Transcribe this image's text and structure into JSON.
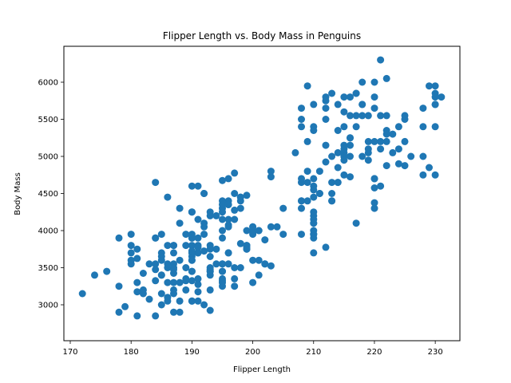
{
  "chart_data": {
    "type": "scatter",
    "title": "Flipper Length vs. Body Mass in Penguins",
    "xlabel": "Flipper Length",
    "ylabel": "Body Mass",
    "xlim": [
      168.95,
      234.05
    ],
    "ylim": [
      2516,
      6484
    ],
    "xticks": [
      170,
      180,
      190,
      200,
      210,
      220,
      230
    ],
    "yticks": [
      3000,
      3500,
      4000,
      4500,
      5000,
      5500,
      6000
    ],
    "grid": false,
    "legend": null,
    "marker_color": "#1f77b4",
    "points": [
      [
        181,
        3750
      ],
      [
        186,
        3800
      ],
      [
        195,
        3250
      ],
      [
        193,
        3450
      ],
      [
        190,
        3650
      ],
      [
        181,
        3625
      ],
      [
        195,
        4675
      ],
      [
        193,
        3475
      ],
      [
        190,
        4250
      ],
      [
        186,
        3300
      ],
      [
        180,
        3700
      ],
      [
        182,
        3200
      ],
      [
        191,
        3800
      ],
      [
        198,
        4400
      ],
      [
        185,
        3700
      ],
      [
        195,
        3450
      ],
      [
        197,
        4500
      ],
      [
        184,
        3325
      ],
      [
        194,
        4200
      ],
      [
        174,
        3400
      ],
      [
        180,
        3600
      ],
      [
        189,
        3800
      ],
      [
        185,
        3950
      ],
      [
        180,
        3800
      ],
      [
        187,
        3800
      ],
      [
        183,
        3550
      ],
      [
        187,
        3200
      ],
      [
        172,
        3150
      ],
      [
        180,
        3950
      ],
      [
        178,
        3250
      ],
      [
        178,
        3900
      ],
      [
        188,
        3300
      ],
      [
        184,
        3900
      ],
      [
        195,
        3325
      ],
      [
        196,
        4150
      ],
      [
        190,
        3950
      ],
      [
        180,
        3550
      ],
      [
        181,
        3300
      ],
      [
        184,
        4650
      ],
      [
        182,
        3150
      ],
      [
        195,
        3900
      ],
      [
        186,
        3100
      ],
      [
        196,
        4400
      ],
      [
        185,
        3000
      ],
      [
        190,
        4600
      ],
      [
        182,
        3425
      ],
      [
        179,
        2975
      ],
      [
        190,
        3450
      ],
      [
        191,
        4150
      ],
      [
        186,
        3500
      ],
      [
        188,
        4300
      ],
      [
        190,
        3450
      ],
      [
        200,
        4050
      ],
      [
        187,
        2900
      ],
      [
        191,
        3700
      ],
      [
        186,
        3550
      ],
      [
        193,
        3800
      ],
      [
        181,
        2850
      ],
      [
        194,
        3750
      ],
      [
        185,
        3150
      ],
      [
        195,
        4400
      ],
      [
        185,
        3600
      ],
      [
        192,
        4050
      ],
      [
        184,
        2850
      ],
      [
        192,
        3950
      ],
      [
        195,
        3350
      ],
      [
        188,
        4100
      ],
      [
        190,
        3050
      ],
      [
        198,
        4450
      ],
      [
        190,
        3600
      ],
      [
        190,
        3900
      ],
      [
        196,
        3550
      ],
      [
        197,
        4150
      ],
      [
        190,
        3700
      ],
      [
        195,
        4250
      ],
      [
        191,
        3700
      ],
      [
        184,
        3900
      ],
      [
        187,
        3550
      ],
      [
        195,
        4000
      ],
      [
        189,
        3200
      ],
      [
        196,
        4700
      ],
      [
        187,
        3800
      ],
      [
        193,
        4200
      ],
      [
        191,
        3350
      ],
      [
        194,
        3550
      ],
      [
        190,
        3800
      ],
      [
        189,
        3500
      ],
      [
        189,
        3950
      ],
      [
        190,
        3600
      ],
      [
        202,
        3550
      ],
      [
        205,
        4300
      ],
      [
        185,
        3400
      ],
      [
        186,
        4450
      ],
      [
        187,
        3300
      ],
      [
        208,
        4300
      ],
      [
        190,
        3700
      ],
      [
        196,
        4350
      ],
      [
        178,
        2900
      ],
      [
        192,
        4100
      ],
      [
        192,
        3725
      ],
      [
        203,
        4725
      ],
      [
        183,
        3075
      ],
      [
        190,
        4250
      ],
      [
        193,
        2925
      ],
      [
        184,
        3550
      ],
      [
        199,
        3750
      ],
      [
        190,
        3900
      ],
      [
        181,
        3175
      ],
      [
        197,
        4775
      ],
      [
        198,
        3825
      ],
      [
        191,
        4600
      ],
      [
        193,
        3200
      ],
      [
        197,
        4275
      ],
      [
        191,
        3900
      ],
      [
        196,
        4075
      ],
      [
        188,
        2900
      ],
      [
        199,
        3775
      ],
      [
        189,
        3350
      ],
      [
        189,
        3325
      ],
      [
        187,
        3150
      ],
      [
        198,
        3500
      ],
      [
        176,
        3450
      ],
      [
        202,
        3875
      ],
      [
        186,
        3050
      ],
      [
        199,
        4000
      ],
      [
        191,
        3275
      ],
      [
        195,
        4300
      ],
      [
        191,
        3050
      ],
      [
        210,
        4000
      ],
      [
        190,
        3325
      ],
      [
        197,
        3500
      ],
      [
        193,
        3500
      ],
      [
        199,
        4475
      ],
      [
        187,
        3425
      ],
      [
        190,
        3900
      ],
      [
        191,
        3175
      ],
      [
        200,
        3975
      ],
      [
        185,
        3400
      ],
      [
        193,
        4250
      ],
      [
        193,
        3400
      ],
      [
        187,
        3475
      ],
      [
        188,
        3050
      ],
      [
        190,
        3725
      ],
      [
        192,
        3000
      ],
      [
        185,
        3650
      ],
      [
        190,
        4250
      ],
      [
        184,
        3475
      ],
      [
        195,
        3450
      ],
      [
        193,
        3750
      ],
      [
        187,
        3700
      ],
      [
        201,
        4000
      ],
      [
        211,
        4500
      ],
      [
        230,
        5700
      ],
      [
        210,
        4450
      ],
      [
        218,
        5700
      ],
      [
        215,
        5400
      ],
      [
        210,
        4550
      ],
      [
        211,
        4800
      ],
      [
        219,
        5200
      ],
      [
        209,
        4400
      ],
      [
        215,
        5150
      ],
      [
        214,
        4650
      ],
      [
        216,
        5550
      ],
      [
        214,
        4650
      ],
      [
        213,
        5850
      ],
      [
        210,
        4200
      ],
      [
        217,
        5850
      ],
      [
        210,
        4150
      ],
      [
        221,
        6300
      ],
      [
        209,
        4800
      ],
      [
        222,
        5350
      ],
      [
        218,
        5700
      ],
      [
        215,
        5000
      ],
      [
        213,
        4400
      ],
      [
        215,
        5050
      ],
      [
        215,
        5000
      ],
      [
        215,
        5100
      ],
      [
        210,
        4100
      ],
      [
        220,
        5650
      ],
      [
        222,
        5550
      ],
      [
        209,
        4650
      ],
      [
        207,
        5050
      ],
      [
        230,
        5850
      ],
      [
        220,
        4700
      ],
      [
        220,
        5800
      ],
      [
        213,
        4650
      ],
      [
        219,
        5550
      ],
      [
        208,
        4650
      ],
      [
        208,
        4400
      ],
      [
        208,
        4400
      ],
      [
        225,
        5200
      ],
      [
        210,
        4700
      ],
      [
        216,
        5800
      ],
      [
        222,
        4875
      ],
      [
        217,
        5850
      ],
      [
        225,
        5500
      ],
      [
        213,
        4500
      ],
      [
        215,
        4750
      ],
      [
        210,
        5700
      ],
      [
        220,
        4300
      ],
      [
        210,
        5400
      ],
      [
        225,
        4875
      ],
      [
        217,
        5550
      ],
      [
        220,
        4700
      ],
      [
        208,
        5500
      ],
      [
        220,
        4575
      ],
      [
        208,
        5400
      ],
      [
        224,
        4900
      ],
      [
        208,
        5650
      ],
      [
        221,
        4600
      ],
      [
        214,
        5700
      ],
      [
        231,
        5800
      ],
      [
        219,
        5100
      ],
      [
        230,
        5950
      ],
      [
        214,
        5050
      ],
      [
        229,
        4850
      ],
      [
        220,
        6000
      ],
      [
        223,
        5300
      ],
      [
        216,
        5150
      ],
      [
        221,
        5550
      ],
      [
        221,
        5200
      ],
      [
        217,
        5400
      ],
      [
        216,
        5250
      ],
      [
        230,
        4750
      ],
      [
        209,
        5950
      ],
      [
        220,
        5200
      ],
      [
        215,
        5000
      ],
      [
        223,
        5050
      ],
      [
        212,
        5800
      ],
      [
        221,
        5100
      ],
      [
        212,
        4925
      ],
      [
        224,
        5400
      ],
      [
        212,
        5500
      ],
      [
        228,
        4750
      ],
      [
        218,
        6000
      ],
      [
        218,
        5000
      ],
      [
        212,
        5650
      ],
      [
        230,
        5700
      ],
      [
        218,
        5550
      ],
      [
        228,
        5000
      ],
      [
        212,
        5150
      ],
      [
        224,
        5100
      ],
      [
        214,
        5350
      ],
      [
        226,
        5000
      ],
      [
        216,
        5000
      ],
      [
        222,
        5200
      ],
      [
        203,
        4800
      ],
      [
        225,
        5550
      ],
      [
        219,
        4950
      ],
      [
        228,
        5400
      ],
      [
        215,
        5800
      ],
      [
        228,
        5650
      ],
      [
        216,
        5250
      ],
      [
        215,
        4950
      ],
      [
        210,
        5350
      ],
      [
        219,
        5050
      ],
      [
        208,
        4700
      ],
      [
        209,
        5200
      ],
      [
        216,
        4725
      ],
      [
        229,
        5950
      ],
      [
        213,
        4400
      ],
      [
        230,
        5800
      ],
      [
        217,
        4100
      ],
      [
        230,
        5400
      ],
      [
        222,
        5300
      ],
      [
        214,
        4850
      ],
      [
        215,
        5600
      ],
      [
        222,
        6050
      ],
      [
        212,
        5750
      ],
      [
        213,
        5000
      ],
      [
        210,
        4600
      ],
      [
        201,
        4000
      ],
      [
        210,
        4250
      ],
      [
        211,
        4500
      ],
      [
        195,
        3550
      ],
      [
        198,
        4300
      ],
      [
        199,
        3800
      ],
      [
        195,
        4350
      ],
      [
        193,
        3650
      ],
      [
        210,
        3950
      ],
      [
        192,
        4500
      ],
      [
        205,
        3950
      ],
      [
        203,
        4050
      ],
      [
        210,
        3950
      ],
      [
        196,
        4350
      ],
      [
        195,
        3300
      ],
      [
        200,
        4050
      ],
      [
        204,
        4050
      ],
      [
        200,
        3300
      ],
      [
        196,
        3700
      ],
      [
        196,
        3700
      ],
      [
        199,
        3800
      ],
      [
        208,
        3950
      ],
      [
        201,
        3400
      ],
      [
        200,
        4000
      ],
      [
        197,
        3350
      ],
      [
        210,
        3700
      ],
      [
        195,
        4150
      ],
      [
        200,
        3600
      ],
      [
        188,
        3600
      ],
      [
        192,
        4500
      ],
      [
        190,
        3050
      ],
      [
        196,
        4050
      ],
      [
        187,
        3500
      ],
      [
        197,
        3250
      ],
      [
        191,
        3775
      ],
      [
        200,
        3950
      ],
      [
        193,
        3450
      ],
      [
        202,
        3550
      ],
      [
        199,
        3750
      ],
      [
        201,
        3600
      ],
      [
        210,
        4100
      ],
      [
        212,
        3775
      ],
      [
        198,
        4450
      ],
      [
        203,
        3525
      ],
      [
        220,
        4375
      ],
      [
        195,
        3550
      ],
      [
        210,
        3900
      ]
    ]
  }
}
